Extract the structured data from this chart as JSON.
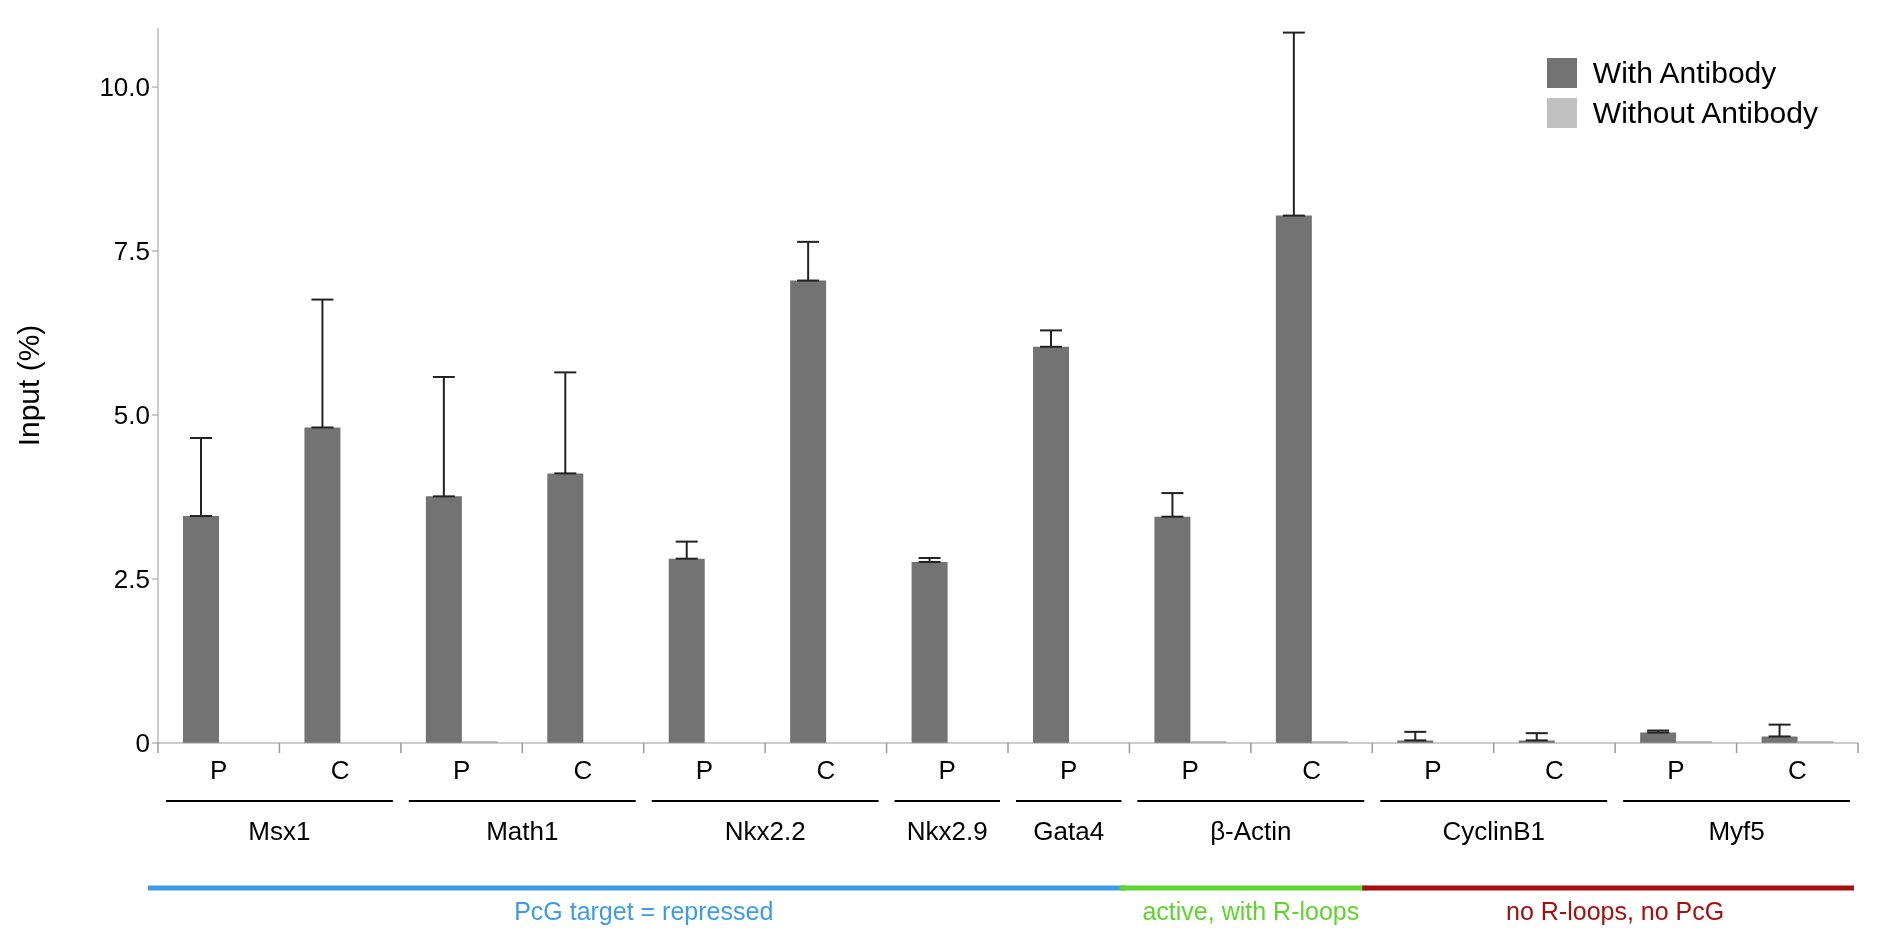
{
  "chart_data": {
    "type": "bar",
    "ylabel": "Input (%)",
    "categories": [
      "P",
      "C",
      "P",
      "C",
      "P",
      "C",
      "P",
      "P",
      "P",
      "C",
      "P",
      "C",
      "P",
      "C"
    ],
    "series": [
      {
        "name": "With Antibody",
        "color": "#737373",
        "values": [
          3.46,
          4.81,
          3.76,
          4.11,
          2.81,
          7.05,
          2.76,
          6.04,
          3.45,
          8.04,
          0.04,
          0.04,
          0.16,
          0.1
        ],
        "errors": [
          1.19,
          1.95,
          1.82,
          1.54,
          0.26,
          0.59,
          0.06,
          0.25,
          0.36,
          2.79,
          [
            0.04,
            0.17
          ],
          [
            0.04,
            0.15
          ],
          0.03,
          0.18
        ]
      },
      {
        "name": "Without Antibody",
        "color": "#c0c0c0",
        "values": [
          0,
          0,
          0.03,
          0,
          0,
          0,
          0,
          0,
          0.03,
          0.03,
          0,
          0,
          0.03,
          0.03
        ]
      }
    ],
    "ylim": [
      0,
      10.9
    ],
    "yticks": [
      0,
      {
        "value": 2.5,
        "label": "2.5"
      },
      {
        "value": 5,
        "label": "5.0"
      },
      {
        "value": 7.5,
        "label": "7.5"
      },
      {
        "value": 10,
        "label": "10.0"
      }
    ],
    "grid": false,
    "legend": "top right",
    "annotations": [
      "Msx1",
      "Math1",
      "Nkx2.2",
      "Nkx2.9",
      "Gata4",
      "β-Actin",
      "CyclinB1",
      "Myf5",
      "PcG target = repressed",
      "active, with R-loops",
      "no R-loops, no PcG"
    ]
  }
}
